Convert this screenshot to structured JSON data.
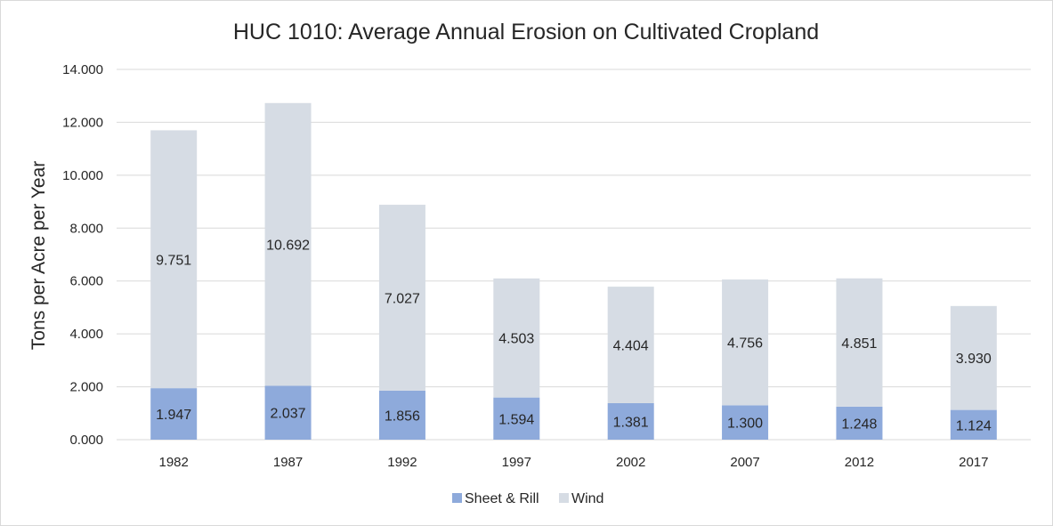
{
  "chart_data": {
    "type": "bar",
    "stacked": true,
    "title": "HUC 1010: Average Annual Erosion on Cultivated Cropland",
    "xlabel": "",
    "ylabel": "Tons per Acre per Year",
    "ylim": [
      0,
      14
    ],
    "y_ticks": [
      "0.000",
      "2.000",
      "4.000",
      "6.000",
      "8.000",
      "10.000",
      "12.000",
      "14.000"
    ],
    "grid": true,
    "legend_position": "bottom",
    "categories": [
      "1982",
      "1987",
      "1992",
      "1997",
      "2002",
      "2007",
      "2012",
      "2017"
    ],
    "series": [
      {
        "name": "Sheet & Rill",
        "color": "#8eaadb",
        "values": [
          1.947,
          2.037,
          1.856,
          1.594,
          1.381,
          1.3,
          1.248,
          1.124
        ],
        "labels": [
          "1.947",
          "2.037",
          "1.856",
          "1.594",
          "1.381",
          "1.300",
          "1.248",
          "1.124"
        ]
      },
      {
        "name": "Wind",
        "color": "#d6dce4",
        "values": [
          9.751,
          10.692,
          7.027,
          4.503,
          4.404,
          4.756,
          4.851,
          3.93
        ],
        "labels": [
          "9.751",
          "10.692",
          "7.027",
          "4.503",
          "4.404",
          "4.756",
          "4.851",
          "3.930"
        ]
      }
    ]
  }
}
